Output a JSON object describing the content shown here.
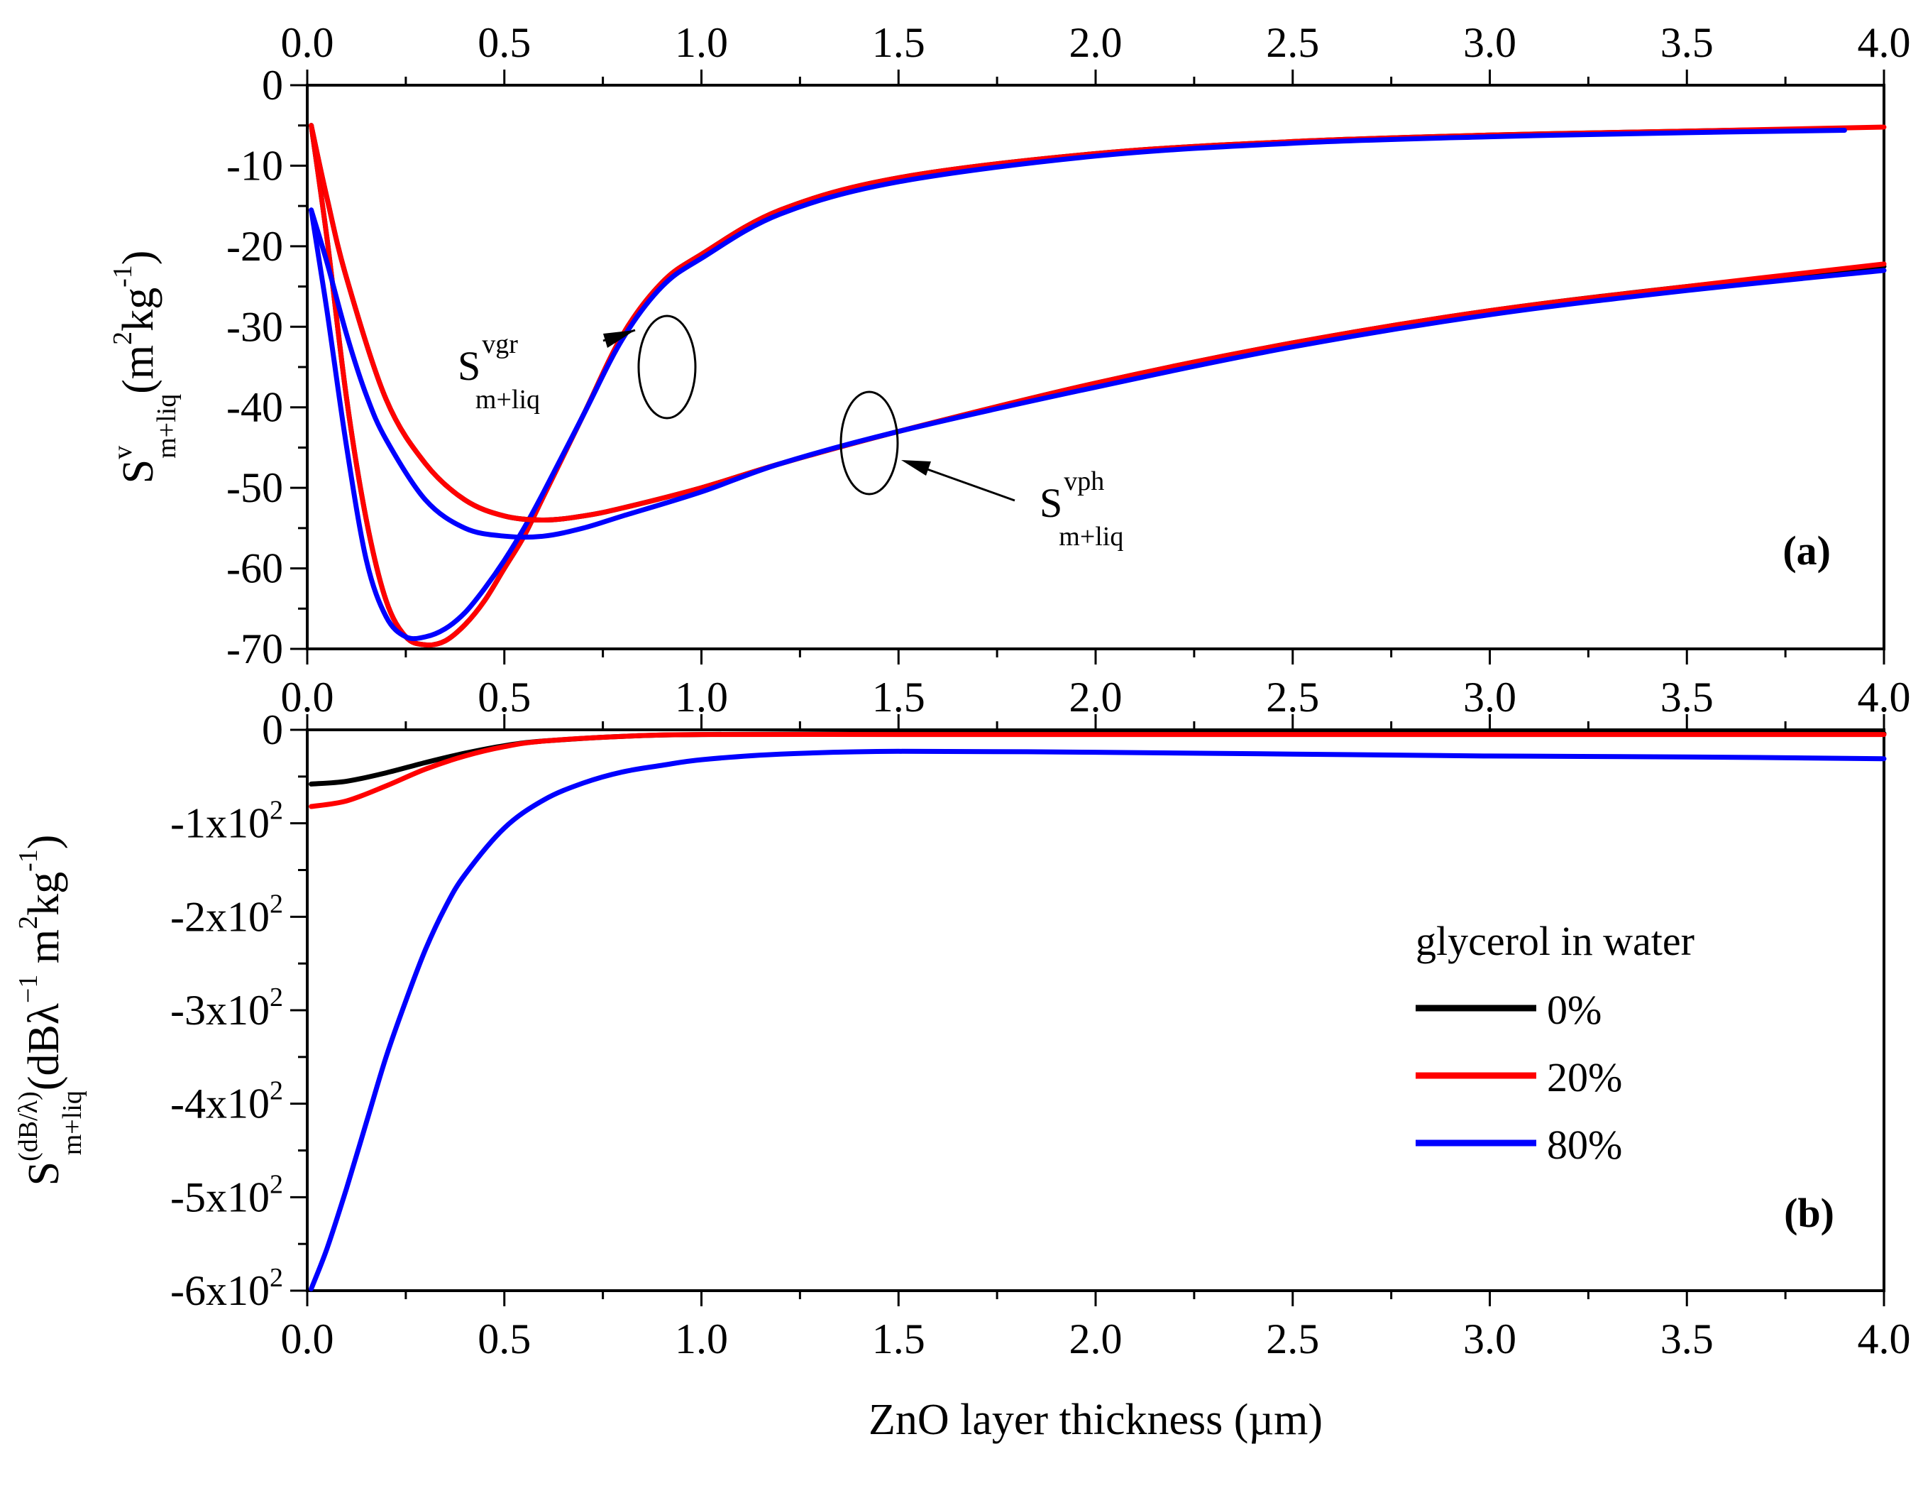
{
  "chart_data": [
    {
      "panel": "a",
      "type": "line",
      "panel_label": "(a)",
      "xlabel": "ZnO layer thickness (µm)",
      "ylabel": {
        "base": "S",
        "sup": "v",
        "sub": "m+liq",
        "units_open": "(m",
        "units_sup1": "2",
        "units_mid": "kg",
        "units_sup2": "-1",
        "units_close": ")"
      },
      "xlim": [
        0,
        4
      ],
      "ylim": [
        -70,
        0
      ],
      "xticks": [
        0,
        0.5,
        1,
        1.5,
        2,
        2.5,
        3,
        3.5,
        4
      ],
      "xtick_labels": [
        "0.0",
        "0.5",
        "1.0",
        "1.5",
        "2.0",
        "2.5",
        "3.0",
        "3.5",
        "4.0"
      ],
      "yticks": [
        0,
        -10,
        -20,
        -30,
        -40,
        -50,
        -60,
        -70
      ],
      "ytick_labels": [
        "0",
        "-10",
        "-20",
        "-30",
        "-40",
        "-50",
        "-60",
        "-70"
      ],
      "annotations": [
        {
          "base": "S",
          "sup": "vgr",
          "sub": "m+liq"
        },
        {
          "base": "S",
          "sup": "vph",
          "sub": "m+liq"
        }
      ],
      "series": [
        {
          "name": "0% vgr",
          "color": "#000000",
          "x": [
            0.01,
            0.05,
            0.1,
            0.15,
            0.2,
            0.25,
            0.3,
            0.35,
            0.4,
            0.45,
            0.5,
            0.55,
            0.6,
            0.7,
            0.8,
            0.9,
            1.0,
            1.2,
            1.5,
            2.0,
            2.5,
            3.0,
            3.5,
            3.9
          ],
          "y": [
            -5,
            -19,
            -39,
            -54,
            -64,
            -68.5,
            -69.5,
            -69,
            -67,
            -64,
            -60,
            -56,
            -51,
            -41,
            -31,
            -24.5,
            -21,
            -15.5,
            -11.5,
            -8.5,
            -7,
            -6.2,
            -5.7,
            -5.4
          ]
        },
        {
          "name": "20% vgr",
          "color": "#ff0000",
          "x": [
            0.01,
            0.05,
            0.1,
            0.15,
            0.2,
            0.25,
            0.3,
            0.35,
            0.4,
            0.45,
            0.5,
            0.55,
            0.6,
            0.7,
            0.8,
            0.9,
            1.0,
            1.2,
            1.5,
            2.0,
            2.5,
            3.0,
            3.5,
            4.0
          ],
          "y": [
            -5,
            -19,
            -39,
            -54,
            -64,
            -68.5,
            -69.5,
            -69,
            -67,
            -64,
            -60,
            -56,
            -51,
            -41,
            -31,
            -24.5,
            -21,
            -15.5,
            -11.5,
            -8.5,
            -7,
            -6.2,
            -5.7,
            -5.2
          ]
        },
        {
          "name": "80% vgr",
          "color": "#0000ff",
          "x": [
            0.01,
            0.05,
            0.1,
            0.15,
            0.2,
            0.25,
            0.3,
            0.35,
            0.4,
            0.45,
            0.5,
            0.55,
            0.6,
            0.7,
            0.8,
            0.9,
            1.0,
            1.2,
            1.5,
            2.0,
            2.5,
            3.0,
            3.5,
            3.9
          ],
          "y": [
            -15.5,
            -28,
            -45,
            -59,
            -66,
            -68.5,
            -68.5,
            -67.5,
            -65.5,
            -62.5,
            -59,
            -55,
            -50.5,
            -41,
            -31.5,
            -25,
            -21.5,
            -16,
            -12,
            -8.8,
            -7.2,
            -6.4,
            -5.9,
            -5.6
          ]
        },
        {
          "name": "0% vph",
          "color": "#000000",
          "x": [
            0.01,
            0.05,
            0.1,
            0.2,
            0.3,
            0.4,
            0.5,
            0.6,
            0.7,
            0.8,
            1.0,
            1.2,
            1.5,
            2.0,
            2.5,
            3.0,
            3.5,
            4.0
          ],
          "y": [
            -5,
            -14,
            -24,
            -39,
            -47,
            -51.5,
            -53.5,
            -54,
            -53.5,
            -52.5,
            -50,
            -47,
            -43,
            -37,
            -32,
            -28,
            -25,
            -22.5
          ]
        },
        {
          "name": "20% vph",
          "color": "#ff0000",
          "x": [
            0.01,
            0.05,
            0.1,
            0.2,
            0.3,
            0.4,
            0.5,
            0.6,
            0.7,
            0.8,
            1.0,
            1.2,
            1.5,
            2.0,
            2.5,
            3.0,
            3.5,
            4.0
          ],
          "y": [
            -5,
            -14,
            -24,
            -39,
            -47,
            -51.5,
            -53.5,
            -54,
            -53.5,
            -52.5,
            -50,
            -47,
            -43,
            -37,
            -32,
            -28,
            -25,
            -22.2
          ]
        },
        {
          "name": "80% vph",
          "color": "#0000ff",
          "x": [
            0.01,
            0.05,
            0.1,
            0.15,
            0.2,
            0.3,
            0.4,
            0.5,
            0.6,
            0.7,
            0.8,
            1.0,
            1.2,
            1.5,
            2.0,
            2.5,
            3.0,
            3.5,
            4.0
          ],
          "y": [
            -15.5,
            -22,
            -31,
            -38.5,
            -44,
            -51.5,
            -55,
            -56,
            -56,
            -55,
            -53.5,
            -50.5,
            -47,
            -43,
            -37.5,
            -32.5,
            -28.5,
            -25.5,
            -23
          ]
        }
      ]
    },
    {
      "panel": "b",
      "type": "line",
      "panel_label": "(b)",
      "xlabel": "ZnO layer thickness (µm)",
      "ylabel": {
        "base": "S",
        "sup": "(dB/λ)",
        "sub": "m+liq",
        "units_open": "(dBλ",
        "units_sup0": "−1",
        "units_mid0": " m",
        "units_sup1": "2",
        "units_mid": "kg",
        "units_sup2": "-1",
        "units_close": ")"
      },
      "xlim": [
        0,
        4
      ],
      "ylim": [
        -600,
        0
      ],
      "xticks": [
        0,
        0.5,
        1,
        1.5,
        2,
        2.5,
        3,
        3.5,
        4
      ],
      "xtick_labels": [
        "0.0",
        "0.5",
        "1.0",
        "1.5",
        "2.0",
        "2.5",
        "3.0",
        "3.5",
        "4.0"
      ],
      "yticks": [
        0,
        -100,
        -200,
        -300,
        -400,
        -500,
        -600
      ],
      "ytick_labels": [
        {
          "base": "0",
          "sup": ""
        },
        {
          "base": "-1x10",
          "sup": "2"
        },
        {
          "base": "-2x10",
          "sup": "2"
        },
        {
          "base": "-3x10",
          "sup": "2"
        },
        {
          "base": "-4x10",
          "sup": "2"
        },
        {
          "base": "-5x10",
          "sup": "2"
        },
        {
          "base": "-6x10",
          "sup": "2"
        }
      ],
      "legend": {
        "title": "glycerol in water",
        "location": "center-right",
        "entries": [
          {
            "label": "0%",
            "color": "#000000"
          },
          {
            "label": "20%",
            "color": "#ff0000"
          },
          {
            "label": "80%",
            "color": "#0000ff"
          }
        ]
      },
      "series": [
        {
          "name": "0%",
          "color": "#000000",
          "x": [
            0.01,
            0.1,
            0.2,
            0.3,
            0.4,
            0.5,
            0.6,
            0.8,
            1.0,
            1.5,
            2.0,
            3.0,
            4.0
          ],
          "y": [
            -58,
            -55,
            -46,
            -35,
            -25,
            -17,
            -12,
            -7,
            -5,
            -4,
            -4,
            -4,
            -4
          ]
        },
        {
          "name": "20%",
          "color": "#ff0000",
          "x": [
            0.01,
            0.1,
            0.2,
            0.3,
            0.4,
            0.5,
            0.6,
            0.8,
            1.0,
            1.5,
            2.0,
            3.0,
            4.0
          ],
          "y": [
            -82,
            -76,
            -60,
            -42,
            -28,
            -18,
            -12,
            -7,
            -5,
            -5,
            -5,
            -5,
            -5
          ]
        },
        {
          "name": "80%",
          "color": "#0000ff",
          "x": [
            0.01,
            0.05,
            0.1,
            0.15,
            0.2,
            0.25,
            0.3,
            0.35,
            0.4,
            0.5,
            0.6,
            0.7,
            0.8,
            0.9,
            1.0,
            1.2,
            1.5,
            2.0,
            2.5,
            3.0,
            3.5,
            4.0
          ],
          "y": [
            -598,
            -555,
            -490,
            -420,
            -350,
            -290,
            -235,
            -190,
            -155,
            -105,
            -75,
            -57,
            -45,
            -38,
            -32,
            -26,
            -23,
            -24,
            -26,
            -28,
            -29,
            -31
          ]
        }
      ]
    }
  ]
}
